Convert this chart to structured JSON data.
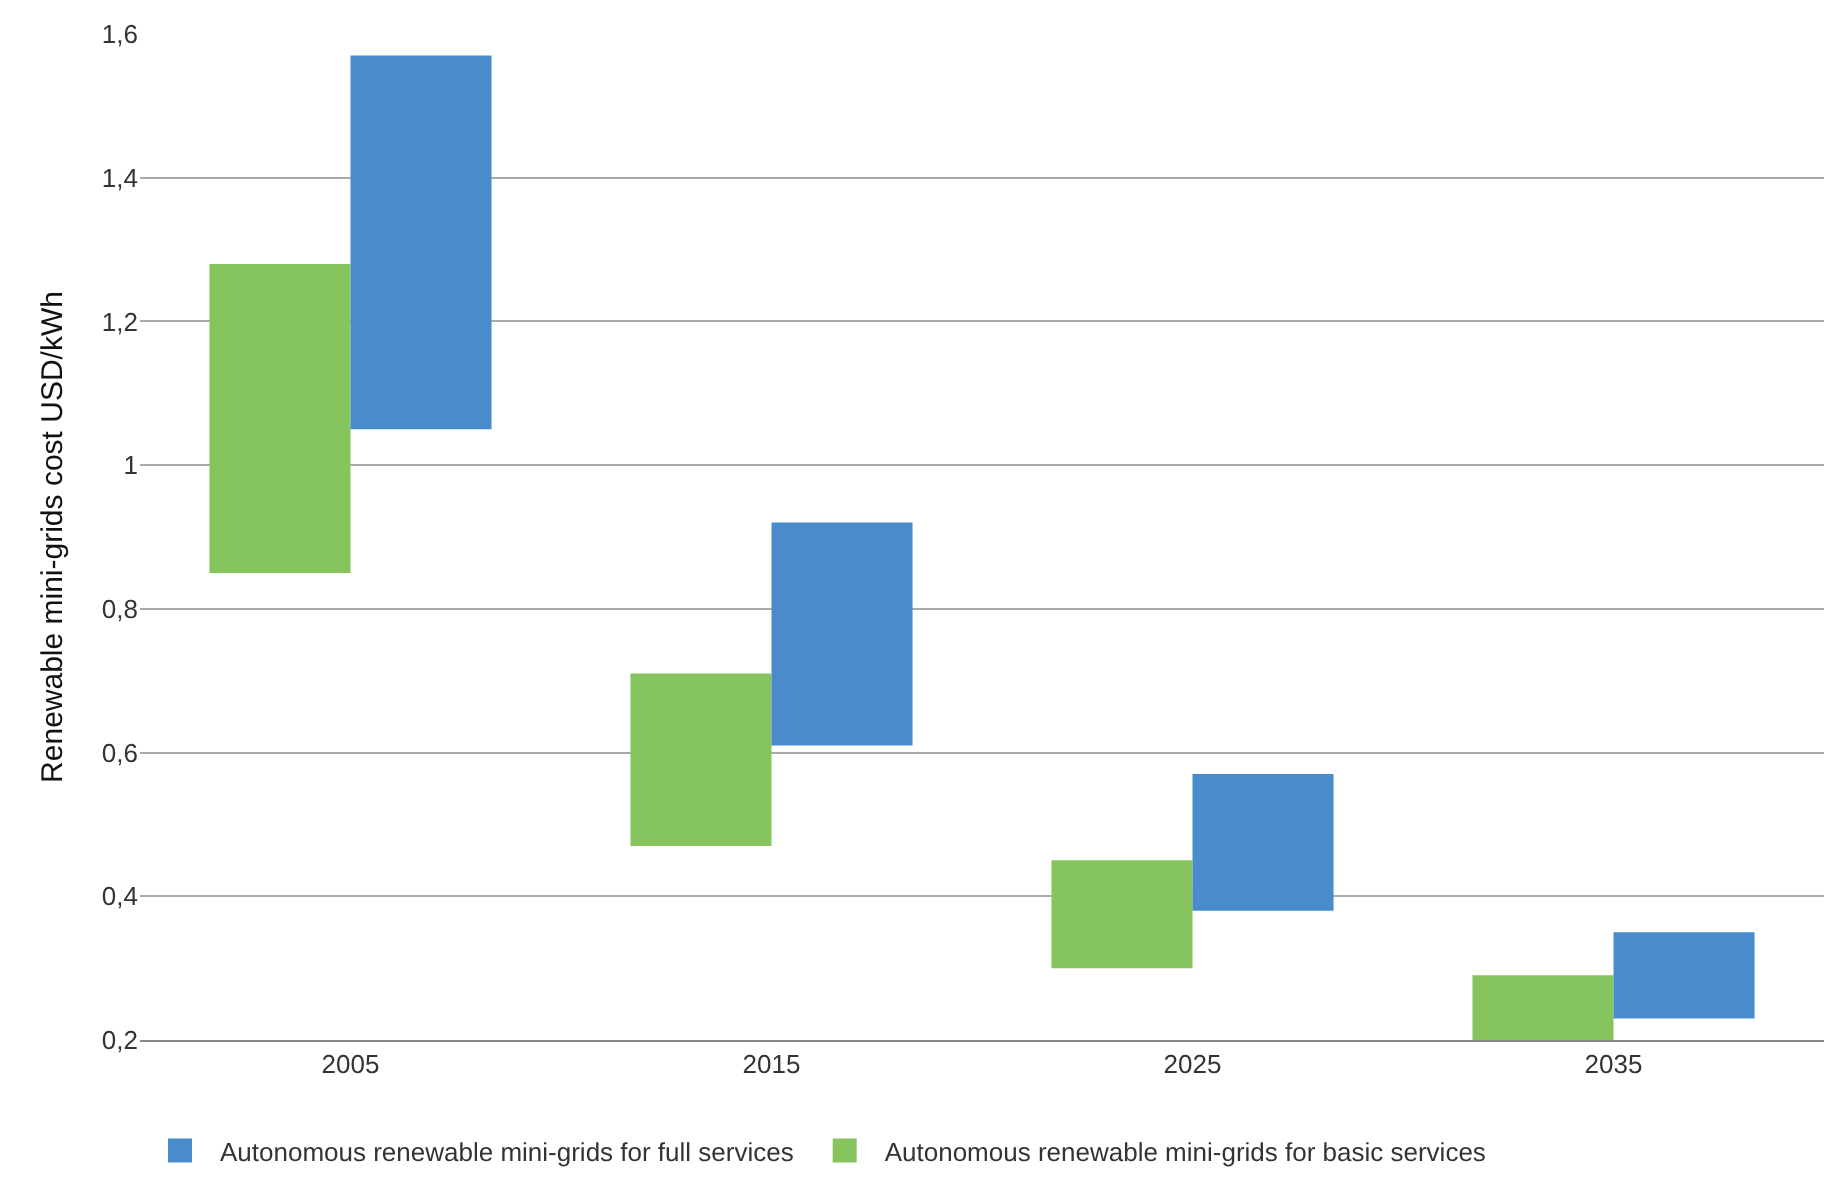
{
  "chart_data": {
    "type": "bar",
    "ylabel": "Renewable mini-grids cost USD/kWh",
    "categories": [
      "2005",
      "2015",
      "2025",
      "2035"
    ],
    "series": [
      {
        "name": "Autonomous renewable mini-grids for basic services",
        "color": "#86c45d",
        "base": [
          0.85,
          0.47,
          0.3,
          0.2
        ],
        "values": [
          0.43,
          0.24,
          0.15,
          0.09
        ]
      },
      {
        "name": "Autonomous renewable mini-grids for full services",
        "color": "#4a8bcb",
        "base": [
          1.05,
          0.61,
          0.38,
          0.23
        ],
        "values": [
          0.52,
          0.31,
          0.19,
          0.12
        ]
      }
    ],
    "ylim": [
      0.2,
      1.6
    ],
    "yticks": [
      {
        "value": 0.2,
        "label": "0,2"
      },
      {
        "value": 0.4,
        "label": "0,4"
      },
      {
        "value": 0.6,
        "label": "0,6"
      },
      {
        "value": 0.8,
        "label": "0,8"
      },
      {
        "value": 1,
        "label": "1"
      },
      {
        "value": 1.2,
        "label": "1,2"
      },
      {
        "value": 1.4,
        "label": "1,4"
      },
      {
        "value": 1.6,
        "label": "1,6"
      }
    ],
    "grid": "y",
    "legend": "bottom"
  }
}
